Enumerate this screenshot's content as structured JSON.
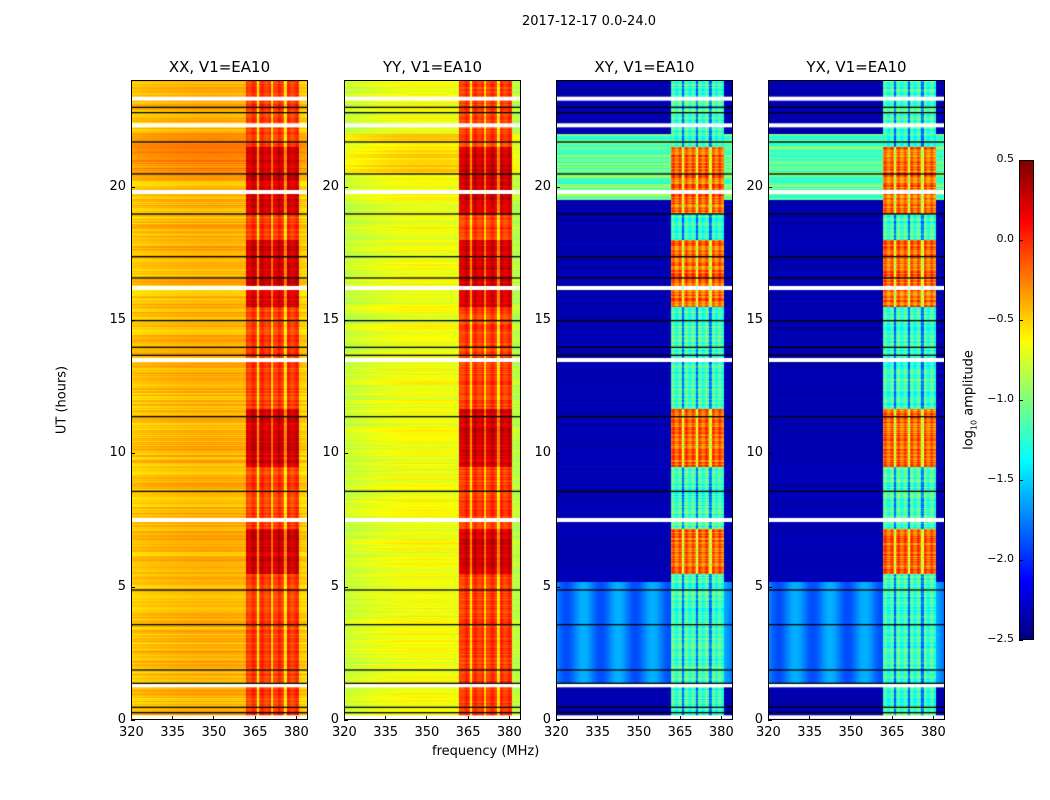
{
  "chart_data": {
    "type": "heatmap",
    "title": "2017-12-17 0.0-24.0",
    "xlabel": "frequency (MHz)",
    "ylabel": "UT (hours)",
    "xlim": [
      320,
      384.4
    ],
    "ylim": [
      0,
      24
    ],
    "xticks": [
      320,
      335,
      350,
      365,
      380
    ],
    "yticks": [
      0,
      5,
      10,
      15,
      20
    ],
    "panels": [
      {
        "title": "XX, V1=EA10",
        "base_log_amp": -0.4,
        "band_log_amp": 0.05,
        "edge_log_amp": -0.5,
        "mode": "parallel"
      },
      {
        "title": "YY, V1=EA10",
        "base_log_amp": -0.65,
        "band_log_amp": 0.05,
        "edge_log_amp": -0.85,
        "mode": "parallel"
      },
      {
        "title": "XY, V1=EA10",
        "base_log_amp": -2.35,
        "band_log_amp": -1.0,
        "edge_log_amp": -2.35,
        "mode": "cross"
      },
      {
        "title": "YX, V1=EA10",
        "base_log_amp": -2.35,
        "band_log_amp": -1.0,
        "edge_log_amp": -2.35,
        "mode": "cross"
      }
    ],
    "band_mhz": [
      361.5,
      381
    ],
    "band_gaps_mhz": [
      366,
      371,
      376
    ],
    "bright_hours": [
      [
        5.5,
        7.2
      ],
      [
        9.5,
        11.7
      ],
      [
        15.5,
        18.0
      ],
      [
        19.0,
        21.5
      ]
    ],
    "flagged_hours": [
      0.1,
      1.3,
      7.5,
      13.5,
      16.2,
      19.8,
      22.3,
      23.3
    ],
    "black_line_hours": [
      0.3,
      0.5,
      1.4,
      1.9,
      3.6,
      4.9,
      8.6,
      11.4,
      13.7,
      14.0,
      15.0,
      16.6,
      17.4,
      19.0,
      20.5,
      21.7,
      22.8,
      23.0
    ],
    "colorbar": {
      "label": "log10 amplitude",
      "label_main": "log",
      "label_sub": "10",
      "label_rest": " amplitude",
      "range": [
        -2.5,
        0.5
      ],
      "ticks": [
        "0.5",
        "0.0",
        "−0.5",
        "−1.0",
        "−1.5",
        "−2.0",
        "−2.5"
      ],
      "tick_values": [
        0.5,
        0.0,
        -0.5,
        -1.0,
        -1.5,
        -2.0,
        -2.5
      ],
      "colormap": "jet"
    }
  }
}
